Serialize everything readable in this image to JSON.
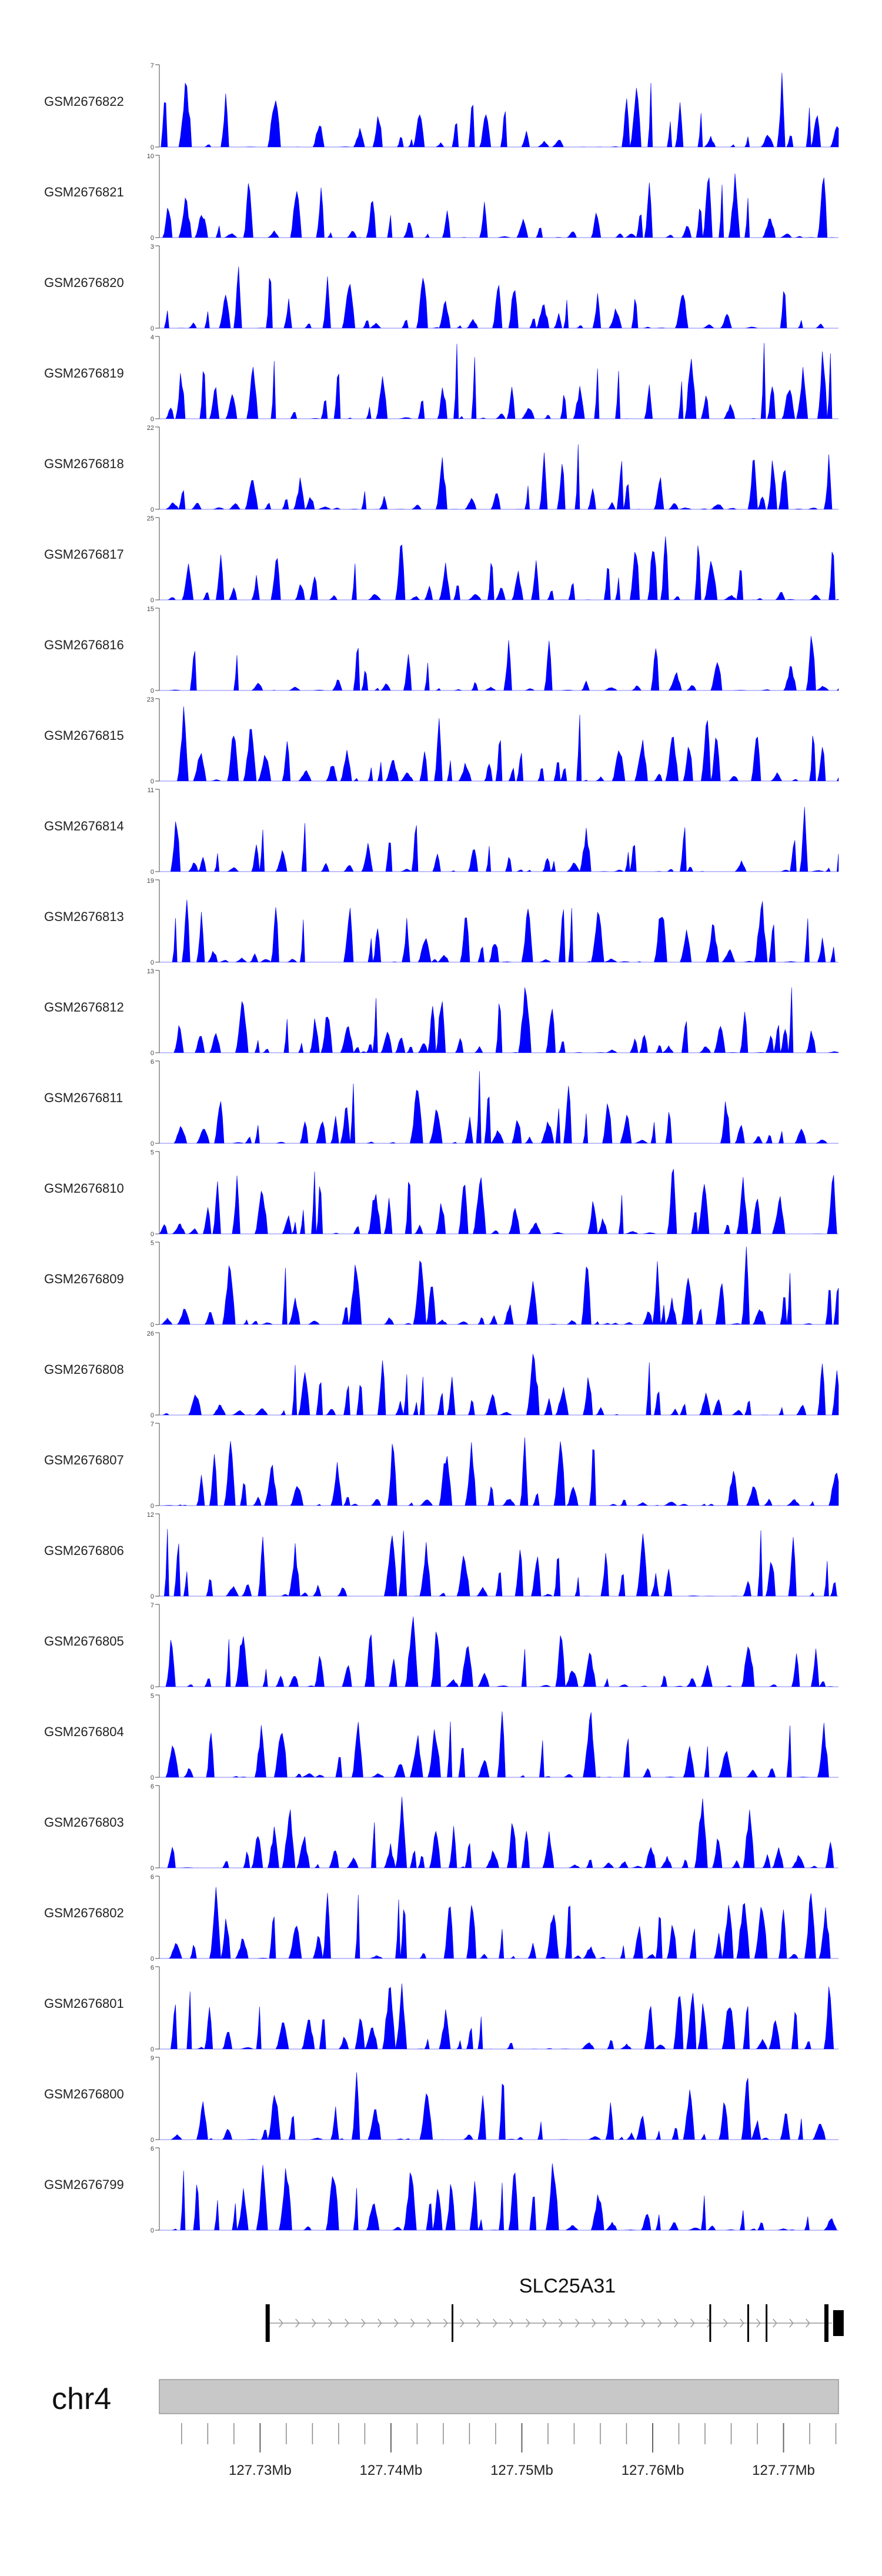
{
  "chart_data": {
    "type": "area",
    "title": "",
    "track_color": "#0000ff",
    "tracks": [
      {
        "name": "GSM2676822",
        "ymax": 7,
        "seed": 11
      },
      {
        "name": "GSM2676821",
        "ymax": 10,
        "seed": 12
      },
      {
        "name": "GSM2676820",
        "ymax": 3,
        "seed": 13
      },
      {
        "name": "GSM2676819",
        "ymax": 4,
        "seed": 14
      },
      {
        "name": "GSM2676818",
        "ymax": 22,
        "seed": 15
      },
      {
        "name": "GSM2676817",
        "ymax": 25,
        "seed": 16
      },
      {
        "name": "GSM2676816",
        "ymax": 15,
        "seed": 17
      },
      {
        "name": "GSM2676815",
        "ymax": 23,
        "seed": 18
      },
      {
        "name": "GSM2676814",
        "ymax": 11,
        "seed": 19
      },
      {
        "name": "GSM2676813",
        "ymax": 19,
        "seed": 20
      },
      {
        "name": "GSM2676812",
        "ymax": 13,
        "seed": 21
      },
      {
        "name": "GSM2676811",
        "ymax": 6,
        "seed": 22
      },
      {
        "name": "GSM2676810",
        "ymax": 5,
        "seed": 23
      },
      {
        "name": "GSM2676809",
        "ymax": 5,
        "seed": 24
      },
      {
        "name": "GSM2676808",
        "ymax": 26,
        "seed": 25
      },
      {
        "name": "GSM2676807",
        "ymax": 7,
        "seed": 26
      },
      {
        "name": "GSM2676806",
        "ymax": 12,
        "seed": 27
      },
      {
        "name": "GSM2676805",
        "ymax": 7,
        "seed": 28
      },
      {
        "name": "GSM2676804",
        "ymax": 5,
        "seed": 29
      },
      {
        "name": "GSM2676803",
        "ymax": 6,
        "seed": 30
      },
      {
        "name": "GSM2676802",
        "ymax": 6,
        "seed": 31
      },
      {
        "name": "GSM2676801",
        "ymax": 6,
        "seed": 32
      },
      {
        "name": "GSM2676800",
        "ymax": 9,
        "seed": 33
      },
      {
        "name": "GSM2676799",
        "ymax": 6,
        "seed": 34
      }
    ],
    "ymin_label": "0",
    "gene": {
      "name": "SLC25A31",
      "start_mb": 127.7306,
      "end_mb": 127.7737,
      "strand": "+",
      "exon_boundaries_mb": [
        127.7306,
        127.7447,
        127.7644,
        127.7673,
        127.7687,
        127.7733
      ]
    },
    "axis": {
      "chromosome": "chr4",
      "xlim_mb": [
        127.7223,
        127.7742
      ],
      "tick_labels": [
        "127.73Mb",
        "127.74Mb",
        "127.75Mb",
        "127.76Mb",
        "127.77Mb"
      ],
      "tick_values_mb": [
        127.73,
        127.74,
        127.75,
        127.76,
        127.77
      ],
      "minor_tick_step_mb": 0.002
    }
  }
}
